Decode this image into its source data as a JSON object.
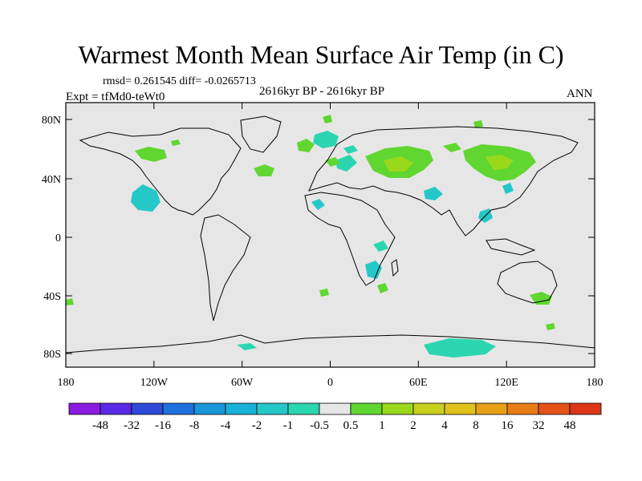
{
  "title": "Warmest Month Mean Surface Air Temp (in C)",
  "stats": "rmsd= 0.261545 diff= -0.0265713",
  "period": "2616kyr BP - 2616kyr BP",
  "experiment": "Expt = tfMd0-teWt0",
  "season": "ANN",
  "lat_labels": [
    "80N",
    "40N",
    "0",
    "40S",
    "80S"
  ],
  "lon_labels": [
    "180",
    "120W",
    "60W",
    "0",
    "60E",
    "120E",
    "180"
  ],
  "colorbar": {
    "colors": [
      "#8a1be0",
      "#5a2ae6",
      "#2f4ad8",
      "#1f70dc",
      "#1996d8",
      "#17b2d6",
      "#25c8c8",
      "#2ad6b0",
      "#e6e6e6",
      "#60d630",
      "#9ad81c",
      "#c8d01a",
      "#e0c21a",
      "#e8a018",
      "#e87c16",
      "#e4521a",
      "#dc3618"
    ],
    "labels": [
      "-48",
      "-32",
      "-16",
      "-8",
      "-4",
      "-2",
      "-1",
      "-0.5",
      "0.5",
      "1",
      "2",
      "4",
      "8",
      "16",
      "32",
      "48"
    ]
  },
  "colors": {
    "background": "#e6e6e6",
    "teal": "#2ad6b0",
    "cyan": "#25c8c8",
    "green": "#60d630",
    "lightgreen": "#9ad81c"
  }
}
